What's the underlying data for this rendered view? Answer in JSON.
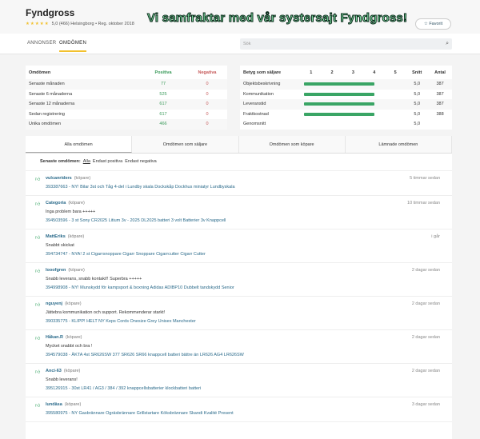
{
  "header": {
    "title": "Fyndgross",
    "stars": "★★★★★",
    "meta": "5,0 (466) Helsingborg • Reg. oktober 2018",
    "banner": "Vi samfraktar med vår systersajt Fyndgross!",
    "favorite": "☆ Favorit"
  },
  "nav": {
    "tabs": [
      "ANNONSER",
      "OMDÖMEN"
    ],
    "active": "OMDÖMEN",
    "search_placeholder": "Sök"
  },
  "stats": {
    "headers": [
      "Omdömen",
      "Positiva",
      "Negativa"
    ],
    "rows": [
      [
        "Senaste månaden",
        "77",
        "0"
      ],
      [
        "Senaste 6 månaderna",
        "525",
        "0"
      ],
      [
        "Senaste 12 månaderna",
        "617",
        "0"
      ],
      [
        "Sedan registrering",
        "617",
        "0"
      ],
      [
        "Unika omdömen",
        "466",
        "0"
      ]
    ]
  },
  "ratings": {
    "headers": [
      "Betyg som säljare",
      "1",
      "2",
      "3",
      "4",
      "5",
      "Snitt",
      "Antal"
    ],
    "rows": [
      {
        "label": "Objektsbeskrivning",
        "score": 5.0,
        "avg": "5,0",
        "count": "387"
      },
      {
        "label": "Kommunikation",
        "score": 5.0,
        "avg": "5,0",
        "count": "387"
      },
      {
        "label": "Leveranstid",
        "score": 5.0,
        "avg": "5,0",
        "count": "387"
      },
      {
        "label": "Fraktkostnad",
        "score": 5.0,
        "avg": "5,0",
        "count": "388"
      }
    ],
    "overall": {
      "label": "Genomsnitt",
      "avg": "5,0"
    }
  },
  "tabs": [
    "Alla omdömen",
    "Omdömen som säljare",
    "Omdömen som köpare",
    "Lämnade omdömen"
  ],
  "filter": {
    "label": "Senaste omdömen:",
    "options": [
      "Alla",
      "Endast positiva",
      "Endast negativa"
    ]
  },
  "reviews": [
    {
      "user": "vulcanriders",
      "role": "(köpare)",
      "time": "5 timmar sedan",
      "comment": "",
      "item": "393387663 - NY! Bilar 3st och Tåg 4-del i Lundby skala Dockskåp Dockhus miniatyr Lundbyskala"
    },
    {
      "user": "Categoria",
      "role": "(köpare)",
      "time": "10 timmar sedan",
      "comment": "Inga problem bara +++++",
      "item": "394503596 - 3 st Sony CR2025 Litium 3v - 2025 DL2025 batteri 3 volt Batterier 3v Knappcell"
    },
    {
      "user": "MattEriks",
      "role": "(köpare)",
      "time": "i går",
      "comment": "Snabbt skickat",
      "item": "394734747 - NYA! 2 st Cigarrsnoppare Cigarr Snoppare Cigarrcutter Cigarr Cutter"
    },
    {
      "user": "looofgren",
      "role": "(köpare)",
      "time": "2 dagar sedan",
      "comment": "Snabb leverans, snabb kontakt!! Superbra +++++",
      "item": "394998908 - NY! Munskydd för kampsport & boxning Adidas ADIBP10 Dubbelt tandskydd Senior"
    },
    {
      "user": "nguyenj",
      "role": "(köpare)",
      "time": "2 dagar sedan",
      "comment": "Jättebra kommunikation och support. Rekommenderar starkt!",
      "item": "390335775 - KLIPP! HELT NY Keps Cords Onesize Grey Unisex Manchester"
    },
    {
      "user": "Håkan.R",
      "role": "(köpare)",
      "time": "2 dagar sedan",
      "comment": "Mycket snabbt och bra !",
      "item": "394579038 - ÄKTA 4st SR626SW 377 SR626 SR66 knappcell batteri bättre än LR626 AG4 LR626SW"
    },
    {
      "user": "Anci-63",
      "role": "(köpare)",
      "time": "2 dagar sedan",
      "comment": "Snabb leverans!",
      "item": "395126915 - 30st LR41 / AG3 / 384 / 392 knappcellsbatterier klockbatteri batteri"
    },
    {
      "user": "lundäsa",
      "role": "(köpare)",
      "time": "3 dagar sedan",
      "comment": "",
      "item": "395580975 - NY Gasbrännare Ogräsbrännare Grillstartare Köksbrännare Skandi Kvalité Present"
    }
  ]
}
